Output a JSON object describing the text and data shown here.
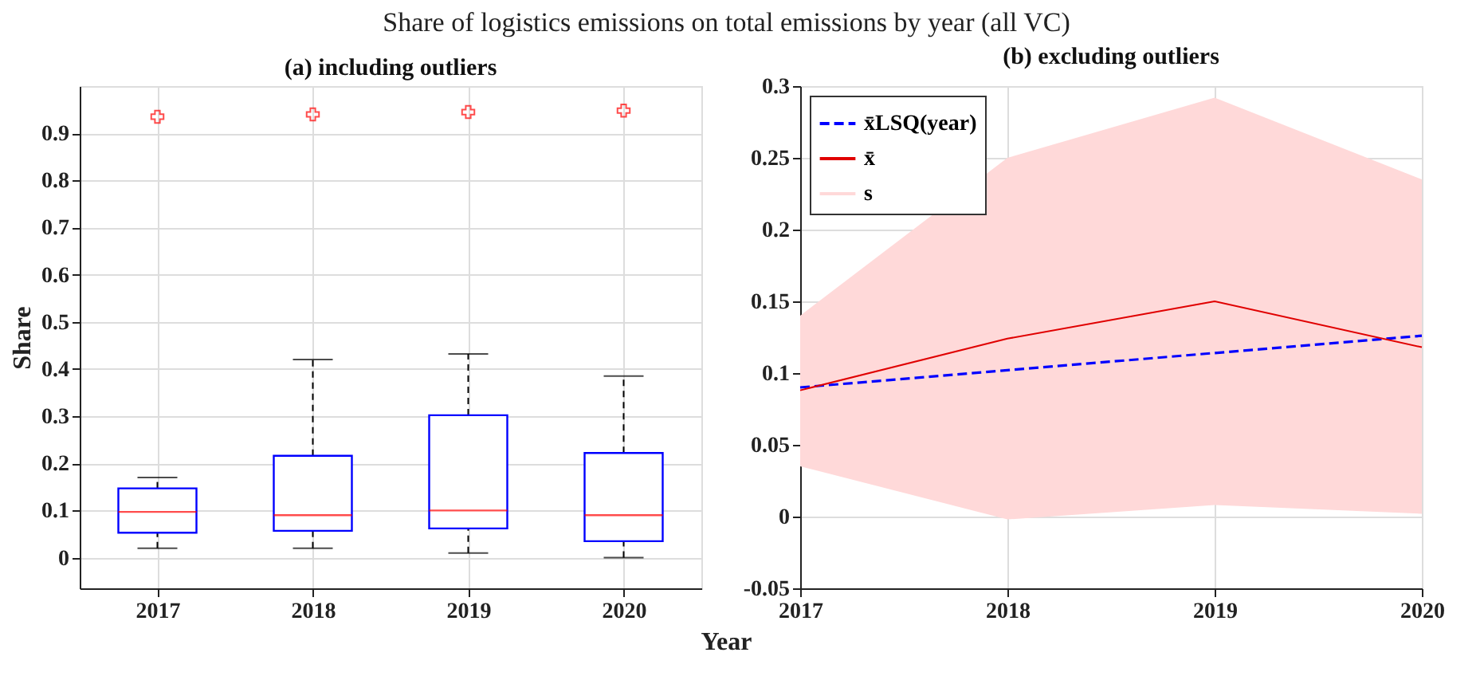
{
  "chart_data": [
    {
      "type": "box",
      "title": "Share of logistics emissions on total emissions by year (all VC)",
      "subtitle": "(a) including outliers",
      "xlabel": "Year",
      "ylabel": "Share",
      "categories": [
        "2017",
        "2018",
        "2019",
        "2020"
      ],
      "series": [
        {
          "color": "#0000ff",
          "boxes": [
            {
              "low": 0.02,
              "q1": 0.053,
              "median": 0.097,
              "q3": 0.147,
              "high": 0.17,
              "outliers": [
                0.935
              ]
            },
            {
              "low": 0.02,
              "q1": 0.057,
              "median": 0.09,
              "q3": 0.216,
              "high": 0.42,
              "outliers": [
                0.94
              ]
            },
            {
              "low": 0.01,
              "q1": 0.062,
              "median": 0.1,
              "q3": 0.302,
              "high": 0.432,
              "outliers": [
                0.945
              ]
            },
            {
              "low": 0.0,
              "q1": 0.035,
              "median": 0.09,
              "q3": 0.222,
              "high": 0.385,
              "outliers": [
                0.948
              ]
            }
          ]
        }
      ],
      "ylim": [
        -0.065,
        1.0
      ],
      "yticks": [
        0,
        0.1,
        0.2,
        0.3,
        0.4,
        0.5,
        0.6,
        0.7,
        0.8,
        0.9
      ],
      "grid": true
    },
    {
      "type": "line",
      "title": "(b) excluding outliers",
      "x": [
        2017,
        2018,
        2019,
        2020
      ],
      "series": [
        {
          "name": "x̄LSQ(year)",
          "color": "#0000ff",
          "line_style": "dashed",
          "values": [
            0.09,
            0.102,
            0.114,
            0.126
          ]
        },
        {
          "name": "x̄",
          "color": "#e00000",
          "line_style": "solid",
          "values": [
            0.088,
            0.124,
            0.15,
            0.118
          ],
          "lower": [
            0.035,
            -0.002,
            0.008,
            0.002
          ],
          "upper": [
            0.14,
            0.25,
            0.292,
            0.235
          ]
        },
        {
          "name": "s",
          "type": "area",
          "color": "#ffd9d9",
          "values": [
            null,
            null,
            null,
            null
          ]
        }
      ],
      "xlim": [
        2017,
        2020
      ],
      "xticks": [
        2017,
        2018,
        2019,
        2020
      ],
      "ylim": [
        -0.05,
        0.3
      ],
      "yticks": [
        -0.05,
        0,
        0.05,
        0.1,
        0.15,
        0.2,
        0.25,
        0.3
      ],
      "grid": true,
      "legend": "top left",
      "marker": "none"
    }
  ]
}
